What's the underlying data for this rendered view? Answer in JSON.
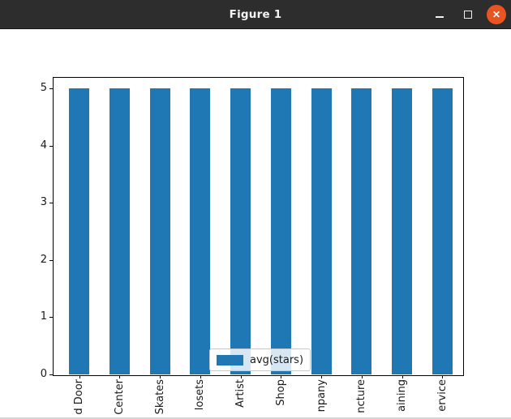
{
  "window": {
    "title": "Figure 1"
  },
  "chart_data": {
    "type": "bar",
    "title": "",
    "xlabel": "",
    "ylabel": "",
    "categories": [
      "d Door",
      "Center",
      "Skates",
      "losets",
      "Artist",
      "Shop",
      "npany",
      "ncture",
      "aining",
      "ervice"
    ],
    "values": [
      5,
      5,
      5,
      5,
      5,
      5,
      5,
      5,
      5,
      5
    ],
    "series": [
      {
        "name": "avg(stars)",
        "values": [
          5,
          5,
          5,
          5,
          5,
          5,
          5,
          5,
          5,
          5
        ]
      }
    ],
    "yticks": [
      "0",
      "1",
      "2",
      "3",
      "4",
      "5"
    ],
    "ylim": [
      0,
      5.2
    ],
    "grid": false,
    "legend": {
      "label": "avg(stars)",
      "position": "lower center"
    },
    "bar_color": "#1f77b4"
  },
  "colors": {
    "titlebar_bg": "#2d2d2d",
    "title_text": "#f3f3f3",
    "close_button_bg": "#e95420",
    "bar": "#1f77b4",
    "axis": "#000000"
  }
}
